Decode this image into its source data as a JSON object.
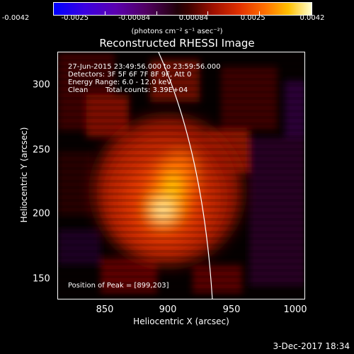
{
  "colorbar": {
    "tick_labels": [
      "-0.0042",
      "-0.0025",
      "-0.00084",
      "0.00084",
      "0.0025",
      "0.0042"
    ],
    "units": "(photons cm⁻² s⁻¹ asec⁻²)"
  },
  "title": "Reconstructed RHESSI Image",
  "info": {
    "time_range": "27-Jun-2015 23:49:56.000 to 23:59:56.000",
    "detectors": "Detectors: 3F 5F 6F 7F 8F 9F, Att 0",
    "energy": "Energy Range: 6.0 - 12.0 keV",
    "algorithm": "Clean",
    "counts": "Total counts: 3.39E+04",
    "peak": "Position of Peak = [899,203]"
  },
  "axes": {
    "xlabel": "Heliocentric X (arcsec)",
    "ylabel": "Heliocentric Y (arcsec)",
    "x_ticks": [
      "850",
      "900",
      "950",
      "1000"
    ],
    "y_ticks": [
      "150",
      "200",
      "250",
      "300"
    ]
  },
  "footer": {
    "date": "3-Dec-2017 18:34"
  }
}
